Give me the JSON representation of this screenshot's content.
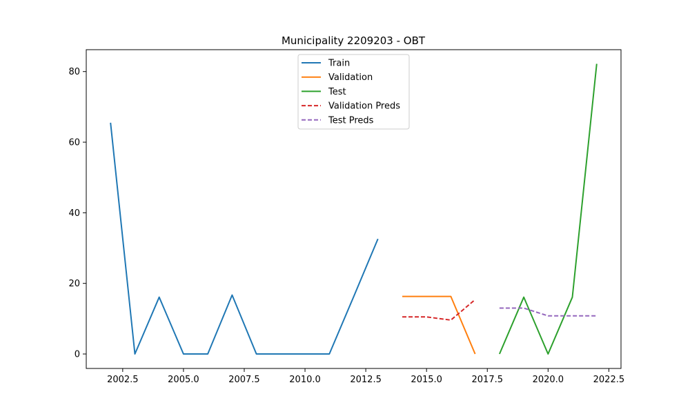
{
  "chart_data": {
    "type": "line",
    "title": "Municipality 2209203 - OBT",
    "xlabel": "",
    "ylabel": "",
    "xlim": [
      2001.0,
      2023.0
    ],
    "ylim": [
      -4.1,
      86.2
    ],
    "x_ticks": [
      2002.5,
      2005.0,
      2007.5,
      2010.0,
      2012.5,
      2015.0,
      2017.5,
      2020.0,
      2022.5
    ],
    "x_tick_labels": [
      "2002.5",
      "2005.0",
      "2007.5",
      "2010.0",
      "2012.5",
      "2015.0",
      "2017.5",
      "2020.0",
      "2022.5"
    ],
    "y_ticks": [
      0,
      20,
      40,
      60,
      80
    ],
    "y_tick_labels": [
      "0",
      "20",
      "40",
      "60",
      "80"
    ],
    "grid": false,
    "legend_position": "upper-center",
    "series": [
      {
        "name": "Train",
        "color": "#1f77b4",
        "dash": "solid",
        "x": [
          2002,
          2003,
          2004,
          2005,
          2006,
          2007,
          2008,
          2009,
          2010,
          2011,
          2012,
          2013
        ],
        "y": [
          65.5,
          0,
          16.1,
          0,
          0,
          16.7,
          0,
          0,
          0,
          0,
          16.2,
          32.6
        ]
      },
      {
        "name": "Validation",
        "color": "#ff7f0e",
        "dash": "solid",
        "x": [
          2014,
          2015,
          2016,
          2017
        ],
        "y": [
          16.3,
          16.3,
          16.3,
          0
        ]
      },
      {
        "name": "Test",
        "color": "#2ca02c",
        "dash": "solid",
        "x": [
          2018,
          2019,
          2020,
          2021,
          2022
        ],
        "y": [
          0,
          16.1,
          0,
          16.1,
          82.2
        ]
      },
      {
        "name": "Validation Preds",
        "color": "#d62728",
        "dash": "dashed",
        "x": [
          2014,
          2015,
          2016,
          2017
        ],
        "y": [
          10.5,
          10.5,
          9.6,
          15.4
        ]
      },
      {
        "name": "Test Preds",
        "color": "#9467bd",
        "dash": "dashed",
        "x": [
          2018,
          2019,
          2020,
          2021,
          2022
        ],
        "y": [
          13.0,
          13.0,
          10.8,
          10.8,
          10.8
        ]
      }
    ]
  }
}
